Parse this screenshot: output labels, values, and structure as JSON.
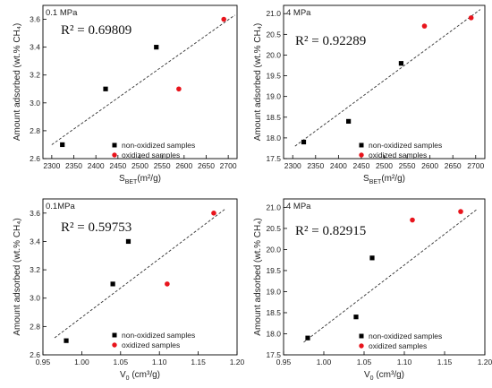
{
  "chart_data": [
    {
      "type": "scatter",
      "pressure_label": "0.1 MPa",
      "r2_label": "R² = 0.69809",
      "xlabel_main": "S",
      "xlabel_sub": "BET",
      "xlabel_tail": "(m²/g)",
      "ylabel": "Amount adsorbed (wt.% CH₄)",
      "xlim": [
        2280,
        2720
      ],
      "ylim": [
        2.6,
        3.7
      ],
      "xticks": [
        2300,
        2350,
        2400,
        2450,
        2500,
        2550,
        2600,
        2650,
        2700
      ],
      "yticks": [
        2.6,
        2.8,
        3.0,
        3.2,
        3.4,
        3.6
      ],
      "ytick_decimals": 1,
      "trendline": [
        [
          2300,
          2.7
        ],
        [
          2715,
          3.63
        ]
      ],
      "series": [
        {
          "name": "non-oxidized samples",
          "color": "#000000",
          "shape": "square",
          "points": [
            [
              2324,
              2.7
            ],
            [
              2422,
              3.1
            ],
            [
              2537,
              3.4
            ]
          ]
        },
        {
          "name": "oxidized samples",
          "color": "#e8141c",
          "shape": "circle",
          "points": [
            [
              2588,
              3.1
            ],
            [
              2690,
              3.6
            ]
          ]
        }
      ],
      "legend_position": "bottom-right"
    },
    {
      "type": "scatter",
      "pressure_label": "4 MPa",
      "r2_label": "R² = 0.92289",
      "xlabel_main": "S",
      "xlabel_sub": "BET",
      "xlabel_tail": "(m²/g)",
      "ylabel": "Amount adsorbed (wt.% CH₄)",
      "xlim": [
        2280,
        2720
      ],
      "ylim": [
        17.5,
        21.2
      ],
      "xticks": [
        2300,
        2350,
        2400,
        2450,
        2500,
        2550,
        2600,
        2650,
        2700
      ],
      "yticks": [
        17.5,
        18.0,
        18.5,
        19.0,
        19.5,
        20.0,
        20.5,
        21.0
      ],
      "ytick_decimals": 1,
      "trendline": [
        [
          2305,
          17.8
        ],
        [
          2710,
          21.1
        ]
      ],
      "series": [
        {
          "name": "non-oxidized samples",
          "color": "#000000",
          "shape": "square",
          "points": [
            [
              2324,
              17.9
            ],
            [
              2422,
              18.4
            ],
            [
              2537,
              19.8
            ]
          ]
        },
        {
          "name": "oxidized samples",
          "color": "#e8141c",
          "shape": "circle",
          "points": [
            [
              2588,
              20.7
            ],
            [
              2690,
              20.9
            ]
          ]
        }
      ],
      "legend_position": "bottom-right"
    },
    {
      "type": "scatter",
      "pressure_label": "0.1MPa",
      "r2_label": "R² = 0.59753",
      "xlabel_main": "V",
      "xlabel_sub": "0",
      "xlabel_tail": " (cm³/g)",
      "ylabel": "Amount adsorbed (wt.% CH₄)",
      "xlim": [
        0.95,
        1.2
      ],
      "ylim": [
        2.6,
        3.7
      ],
      "xticks": [
        0.95,
        1.0,
        1.05,
        1.1,
        1.15,
        1.2
      ],
      "xtick_decimals": 2,
      "yticks": [
        2.6,
        2.8,
        3.0,
        3.2,
        3.4,
        3.6
      ],
      "ytick_decimals": 1,
      "trendline": [
        [
          0.965,
          2.72
        ],
        [
          1.185,
          3.63
        ]
      ],
      "series": [
        {
          "name": "non-oxidized samples",
          "color": "#000000",
          "shape": "square",
          "points": [
            [
              0.98,
              2.7
            ],
            [
              1.04,
              3.1
            ],
            [
              1.06,
              3.4
            ]
          ]
        },
        {
          "name": "oxidized samples",
          "color": "#e8141c",
          "shape": "circle",
          "points": [
            [
              1.11,
              3.1
            ],
            [
              1.17,
              3.6
            ]
          ]
        }
      ],
      "legend_position": "bottom-right"
    },
    {
      "type": "scatter",
      "pressure_label": "4 MPa",
      "r2_label": "R² = 0.82915",
      "xlabel_main": "V",
      "xlabel_sub": "0",
      "xlabel_tail": " (cm³/g)",
      "ylabel": "Amount adsorbed (wt.% CH₄)",
      "xlim": [
        0.95,
        1.2
      ],
      "ylim": [
        17.5,
        21.2
      ],
      "xticks": [
        0.95,
        1.0,
        1.05,
        1.1,
        1.15,
        1.2
      ],
      "xtick_decimals": 2,
      "yticks": [
        17.5,
        18.0,
        18.5,
        19.0,
        19.5,
        20.0,
        20.5,
        21.0
      ],
      "ytick_decimals": 1,
      "trendline": [
        [
          0.975,
          17.8
        ],
        [
          1.19,
          20.95
        ]
      ],
      "series": [
        {
          "name": "non-oxidized samples",
          "color": "#000000",
          "shape": "square",
          "points": [
            [
              0.98,
              17.9
            ],
            [
              1.04,
              18.4
            ],
            [
              1.06,
              19.8
            ]
          ]
        },
        {
          "name": "oxidized samples",
          "color": "#e8141c",
          "shape": "circle",
          "points": [
            [
              1.11,
              20.7
            ],
            [
              1.17,
              20.9
            ]
          ]
        }
      ],
      "legend_position": "bottom-right"
    }
  ]
}
